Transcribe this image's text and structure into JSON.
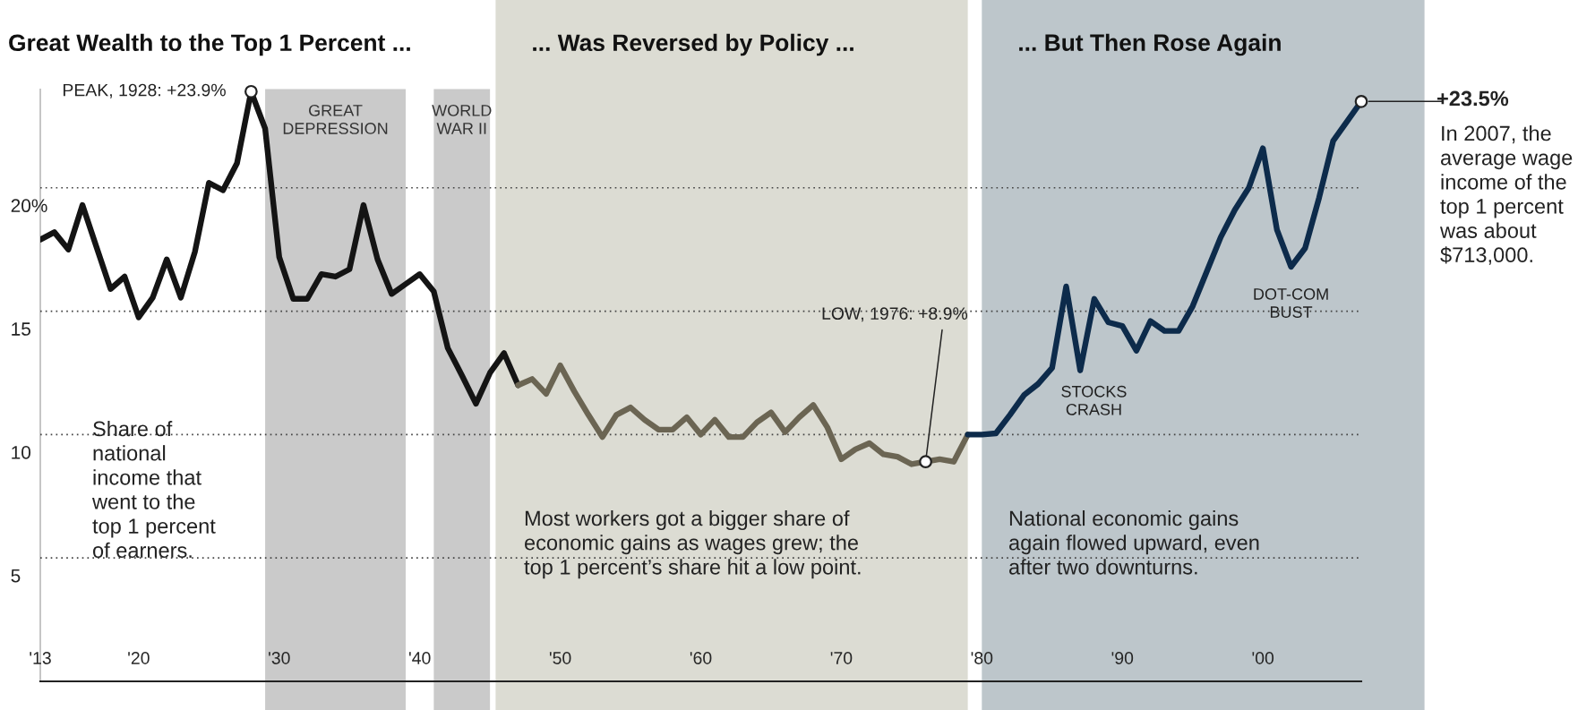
{
  "chart_data": {
    "type": "line",
    "title": "Great Wealth to the Top 1 Percent ...",
    "series": [
      {
        "color": "#141414",
        "x": [
          1913,
          1914,
          1915,
          1916,
          1917,
          1918,
          1919,
          1920,
          1921,
          1922,
          1923,
          1924,
          1925,
          1926,
          1927,
          1928,
          1929,
          1930,
          1931,
          1932,
          1933,
          1934,
          1935,
          1936,
          1937,
          1938,
          1939,
          1940,
          1941,
          1942,
          1943,
          1944,
          1945,
          1946,
          1947
        ],
        "values": [
          17.9,
          18.2,
          17.5,
          19.3,
          17.6,
          15.9,
          16.4,
          14.75,
          15.55,
          17.1,
          15.55,
          17.4,
          20.2,
          19.9,
          21.0,
          23.9,
          22.4,
          17.2,
          15.5,
          15.5,
          16.5,
          16.4,
          16.7,
          19.3,
          17.1,
          15.7,
          16.1,
          16.5,
          15.8,
          13.5,
          12.4,
          11.25,
          12.5,
          13.3,
          12.0
        ]
      },
      {
        "color": "#6b6553",
        "x": [
          1947,
          1948,
          1949,
          1950,
          1951,
          1952,
          1953,
          1954,
          1955,
          1956,
          1957,
          1958,
          1959,
          1960,
          1961,
          1962,
          1963,
          1964,
          1965,
          1966,
          1967,
          1968,
          1969,
          1970,
          1971,
          1972,
          1973,
          1974,
          1975,
          1976,
          1977,
          1978,
          1979
        ],
        "values": [
          12.0,
          12.25,
          11.65,
          12.8,
          11.75,
          10.8,
          9.9,
          10.8,
          11.1,
          10.6,
          10.2,
          10.2,
          10.7,
          10.0,
          10.6,
          9.9,
          9.9,
          10.5,
          10.9,
          10.1,
          10.7,
          11.2,
          10.3,
          9.0,
          9.4,
          9.65,
          9.2,
          9.1,
          8.8,
          8.9,
          9.0,
          8.9,
          10.0
        ]
      },
      {
        "color": "#0d2b4b",
        "x": [
          1979,
          1980,
          1981,
          1982,
          1983,
          1984,
          1985,
          1986,
          1987,
          1988,
          1989,
          1990,
          1991,
          1992,
          1993,
          1994,
          1995,
          1996,
          1997,
          1998,
          1999,
          2000,
          2001,
          2002,
          2003,
          2004,
          2005,
          2006,
          2007
        ],
        "values": [
          10.0,
          10.0,
          10.05,
          10.8,
          11.6,
          12.05,
          12.7,
          16.0,
          12.6,
          15.5,
          14.55,
          14.4,
          13.4,
          14.6,
          14.2,
          14.2,
          15.2,
          16.6,
          18.0,
          19.1,
          20.0,
          21.6,
          18.3,
          16.8,
          17.55,
          19.6,
          21.9,
          22.7,
          23.5
        ]
      }
    ],
    "xlim": [
      1913,
      2007
    ],
    "xticks": [
      {
        "value": 1913,
        "label": "'13"
      },
      {
        "value": 1920,
        "label": "'20"
      },
      {
        "value": 1930,
        "label": "'30"
      },
      {
        "value": 1940,
        "label": "'40"
      },
      {
        "value": 1950,
        "label": "'50"
      },
      {
        "value": 1960,
        "label": "'60"
      },
      {
        "value": 1970,
        "label": "'70"
      },
      {
        "value": 1980,
        "label": "'80"
      },
      {
        "value": 1990,
        "label": "'90"
      },
      {
        "value": 2000,
        "label": "'00"
      }
    ],
    "ylim": [
      0,
      24
    ],
    "yticks": [
      5,
      10,
      15,
      {
        "value": 20,
        "label": "20%"
      }
    ],
    "grid": "y",
    "line_style": "solid",
    "bands": [
      {
        "axis": "x",
        "from": 1929,
        "to": 1939,
        "label": "GREAT\nDEPRESSION",
        "color": "#cacaca"
      },
      {
        "axis": "x",
        "from": 1941,
        "to": 1945,
        "label": "WORLD\nWAR II",
        "color": "#cacaca"
      },
      {
        "axis": "x",
        "from": 1945.4,
        "to": 1979,
        "label": "... Was Reversed by Policy ...",
        "color": "#dcdcd3"
      },
      {
        "axis": "x",
        "from": 1980,
        "to": 2011.5,
        "label": "... But Then Rose Again",
        "color": "#bdc6cb"
      }
    ],
    "annotations": [
      {
        "text": "PEAK, 1928: +23.9%",
        "x": 1928,
        "y": 23.9
      },
      {
        "text": "LOW, 1976: +8.9%",
        "x": 1976,
        "y": 8.9
      },
      {
        "text": "STOCKS\nCRASH",
        "x": 1987,
        "y": 12.6
      },
      {
        "text": "DOT-COM\nBUST",
        "x": 2002,
        "y": 16.8
      },
      "Share of\nnational\nincome that\nwent to the\ntop 1 percent\nof earners.",
      "Most workers got a bigger share of\neconomic gains as wages grew; the\ntop 1 percent’s share hit a low point.",
      "National economic gains\nagain flowed upward, even\nafter two downturns.",
      "+23.5%",
      "In 2007, the\naverage wage\nincome of the\ntop 1 percent\nwas about\n$713,000."
    ]
  }
}
